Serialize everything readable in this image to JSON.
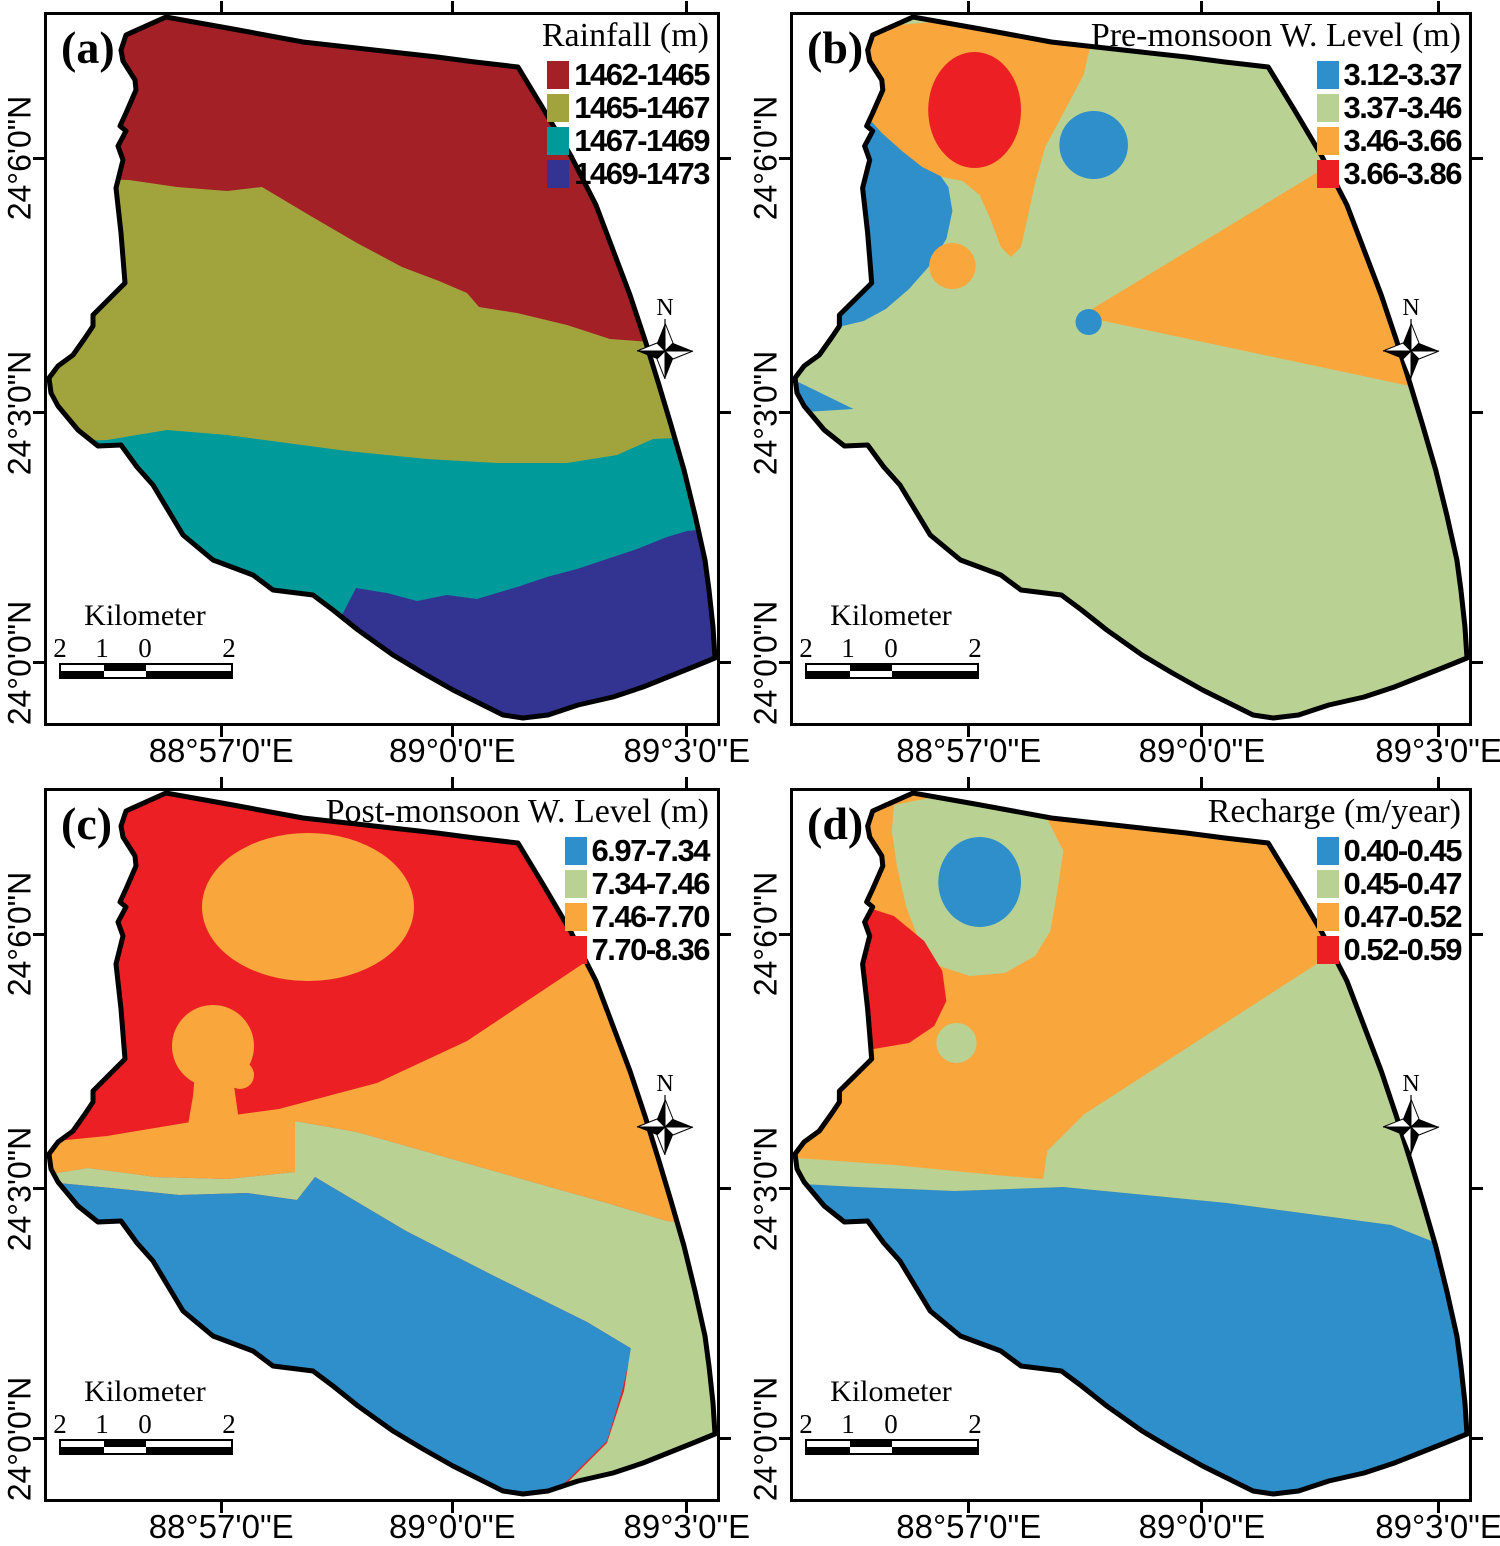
{
  "axes": {
    "lat_labels": [
      "24°6'0\"N",
      "24°3'0\"N",
      "24°0'0\"N"
    ],
    "lon_labels": [
      "88°57'0\"E",
      "89°0'0\"E",
      "89°3'0\"E"
    ]
  },
  "north_label": "N",
  "scalebar": {
    "title": "Kilometer",
    "tick_numbers": [
      "2",
      "1",
      "0",
      "2"
    ]
  },
  "panels": [
    {
      "letter": "(a)",
      "legend_title": "Rainfall (m)",
      "classes": [
        {
          "range": "1462-1465",
          "color": "#A32026"
        },
        {
          "range": "1465-1467",
          "color": "#A1A43D"
        },
        {
          "range": "1467-1469",
          "color": "#019A9B"
        },
        {
          "range": "1469-1473",
          "color": "#333392"
        }
      ]
    },
    {
      "letter": "(b)",
      "legend_title": "Pre-monsoon W. Level (m)",
      "classes": [
        {
          "range": "3.12-3.37",
          "color": "#2E8FCB"
        },
        {
          "range": "3.37-3.46",
          "color": "#B9D294"
        },
        {
          "range": "3.46-3.66",
          "color": "#F9A63C"
        },
        {
          "range": "3.66-3.86",
          "color": "#EC2024"
        }
      ]
    },
    {
      "letter": "(c)",
      "legend_title": "Post-monsoon W. Level (m)",
      "classes": [
        {
          "range": "6.97-7.34",
          "color": "#2E8FCB"
        },
        {
          "range": "7.34-7.46",
          "color": "#B9D294"
        },
        {
          "range": "7.46-7.70",
          "color": "#F9A63C"
        },
        {
          "range": "7.70-8.36",
          "color": "#EC2024"
        }
      ]
    },
    {
      "letter": "(d)",
      "legend_title": "Recharge (m/year)",
      "classes": [
        {
          "range": "0.40-0.45",
          "color": "#2E8FCB"
        },
        {
          "range": "0.45-0.47",
          "color": "#B9D294"
        },
        {
          "range": "0.47-0.52",
          "color": "#F9A63C"
        },
        {
          "range": "0.52-0.59",
          "color": "#EC2024"
        }
      ]
    }
  ],
  "chart_data": {
    "type": "heatmap",
    "subtype": "choropleth-map-panels",
    "shared_axes": {
      "latitude_ticks": [
        "24°6'0\"N",
        "24°3'0\"N",
        "24°0'0\"N"
      ],
      "longitude_ticks": [
        "88°57'0\"E",
        "89°0'0\"E",
        "89°3'0\"E"
      ]
    },
    "panels": [
      {
        "id": "a",
        "title": "Rainfall (m)",
        "classes": [
          "1462-1465",
          "1465-1467",
          "1467-1469",
          "1469-1473"
        ],
        "class_colors": [
          "#A32026",
          "#A1A43D",
          "#019A9B",
          "#333392"
        ]
      },
      {
        "id": "b",
        "title": "Pre-monsoon W. Level (m)",
        "classes": [
          "3.12-3.37",
          "3.37-3.46",
          "3.46-3.66",
          "3.66-3.86"
        ],
        "class_colors": [
          "#2E8FCB",
          "#B9D294",
          "#F9A63C",
          "#EC2024"
        ]
      },
      {
        "id": "c",
        "title": "Post-monsoon W. Level (m)",
        "classes": [
          "6.97-7.34",
          "7.34-7.46",
          "7.46-7.70",
          "7.70-8.36"
        ],
        "class_colors": [
          "#2E8FCB",
          "#B9D294",
          "#F9A63C",
          "#EC2024"
        ]
      },
      {
        "id": "d",
        "title": "Recharge (m/year)",
        "classes": [
          "0.40-0.45",
          "0.45-0.47",
          "0.47-0.52",
          "0.52-0.59"
        ],
        "class_colors": [
          "#2E8FCB",
          "#B9D294",
          "#F9A63C",
          "#EC2024"
        ]
      }
    ],
    "scalebar": {
      "label": "Kilometer",
      "numbers": [
        2,
        1,
        0,
        2
      ],
      "units": "km"
    }
  }
}
